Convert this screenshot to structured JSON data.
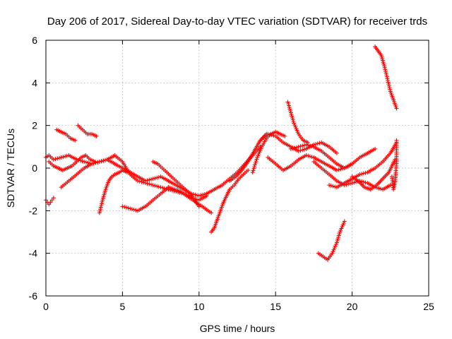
{
  "chart_data": {
    "type": "scatter",
    "title": "Day 206 of 2017, Sidereal Day-to-day VTEC variation (SDTVAR) for receiver trds",
    "xlabel": "GPS time / hours",
    "ylabel": "SDTVAR / TECUs",
    "xlim": [
      0,
      25
    ],
    "ylim": [
      -6,
      6
    ],
    "xticks": [
      0,
      5,
      10,
      15,
      20,
      25
    ],
    "yticks": [
      -6,
      -4,
      -2,
      0,
      2,
      4,
      6
    ],
    "xtick_labels": [
      "0",
      "5",
      "10",
      "15",
      "20",
      "25"
    ],
    "ytick_labels": [
      "-6",
      "-4",
      "-2",
      "0",
      "2",
      "4",
      "6"
    ],
    "grid": true,
    "marker": "+",
    "color": "#ff0000",
    "series": [
      {
        "name": "s1",
        "x": [
          0.0,
          0.2,
          0.5,
          1.0,
          1.5,
          2.0,
          2.5,
          3.0,
          3.5,
          4.0,
          4.5,
          5.0,
          5.5,
          6.0,
          6.5,
          7.0,
          7.5,
          8.0,
          8.5,
          9.0,
          9.5,
          10.0,
          10.5
        ],
        "y": [
          0.5,
          0.6,
          0.4,
          0.5,
          0.6,
          0.4,
          0.3,
          0.2,
          0.3,
          0.4,
          0.6,
          0.3,
          -0.3,
          -0.6,
          -0.7,
          -0.8,
          -0.9,
          -1.0,
          -1.1,
          -1.2,
          -1.4,
          -1.5,
          -1.3
        ]
      },
      {
        "name": "s2",
        "x": [
          0.0,
          0.1,
          0.2,
          0.3,
          0.4,
          0.5
        ],
        "y": [
          -1.5,
          -1.6,
          -1.7,
          -1.6,
          -1.5,
          -1.4
        ]
      },
      {
        "name": "s3",
        "x": [
          0.7,
          1.0,
          1.3,
          1.6,
          1.9
        ],
        "y": [
          1.8,
          1.7,
          1.6,
          1.4,
          1.3
        ]
      },
      {
        "name": "s4",
        "x": [
          2.1,
          2.4,
          2.7,
          3.0,
          3.3
        ],
        "y": [
          2.0,
          1.8,
          1.6,
          1.6,
          1.5
        ]
      },
      {
        "name": "s5",
        "x": [
          0.2,
          0.5,
          0.8,
          1.1,
          1.4,
          1.7,
          2.0,
          2.3,
          2.6,
          2.9,
          3.2
        ],
        "y": [
          0.3,
          0.1,
          0.0,
          -0.1,
          0.0,
          0.1,
          0.3,
          0.5,
          0.6,
          0.4,
          0.3
        ]
      },
      {
        "name": "s6",
        "x": [
          1.0,
          1.5,
          2.0,
          2.5,
          3.0,
          3.5,
          4.0,
          4.5,
          5.0,
          5.5,
          6.0,
          6.5,
          7.0,
          7.5,
          8.0,
          8.5,
          9.0,
          9.5,
          10.0,
          10.5
        ],
        "y": [
          -0.9,
          -0.6,
          -0.3,
          0.0,
          0.2,
          0.3,
          0.4,
          0.2,
          0.0,
          -0.2,
          -0.4,
          -0.6,
          -0.5,
          -0.4,
          -0.6,
          -0.8,
          -1.0,
          -1.2,
          -1.3,
          -1.2
        ]
      },
      {
        "name": "s7",
        "x": [
          3.5,
          3.7,
          3.9,
          4.1,
          4.3,
          4.5,
          4.8,
          5.0,
          5.3
        ],
        "y": [
          -2.1,
          -1.5,
          -1.0,
          -0.6,
          -0.4,
          -0.3,
          -0.2,
          -0.1,
          -0.2
        ]
      },
      {
        "name": "s8",
        "x": [
          5.0,
          5.5,
          6.0,
          6.5,
          7.0,
          7.5,
          8.0
        ],
        "y": [
          -1.8,
          -1.9,
          -2.0,
          -1.8,
          -1.5,
          -1.2,
          -0.9
        ]
      },
      {
        "name": "s9",
        "x": [
          7.0,
          7.3,
          7.6,
          7.9,
          8.2,
          8.5,
          8.8,
          9.1,
          9.4,
          9.7,
          10.0
        ],
        "y": [
          0.3,
          0.2,
          0.0,
          -0.2,
          -0.4,
          -0.6,
          -0.8,
          -1.0,
          -1.2,
          -1.5,
          -1.8
        ]
      },
      {
        "name": "s10",
        "x": [
          8.0,
          8.4,
          8.8,
          9.2,
          9.6,
          10.0,
          10.4,
          10.8
        ],
        "y": [
          -0.9,
          -1.0,
          -1.1,
          -1.3,
          -1.5,
          -1.7,
          -1.9,
          -2.1
        ]
      },
      {
        "name": "s11",
        "x": [
          10.8,
          11.0,
          11.2,
          11.4,
          11.6,
          11.8,
          12.0,
          12.3,
          12.6,
          12.9,
          13.2
        ],
        "y": [
          -3.0,
          -2.8,
          -2.4,
          -2.0,
          -1.6,
          -1.3,
          -1.0,
          -0.8,
          -0.5,
          -0.3,
          -0.1
        ]
      },
      {
        "name": "s12",
        "x": [
          10.5,
          11.0,
          11.5,
          12.0,
          12.5,
          13.0,
          13.5,
          14.0
        ],
        "y": [
          -1.2,
          -1.0,
          -0.8,
          -0.5,
          -0.2,
          0.2,
          0.6,
          1.0
        ]
      },
      {
        "name": "s13",
        "x": [
          12.0,
          12.4,
          12.8,
          13.2,
          13.6,
          14.0,
          14.4
        ],
        "y": [
          -0.6,
          -0.4,
          -0.1,
          0.3,
          0.8,
          1.3,
          1.6
        ]
      },
      {
        "name": "s14",
        "x": [
          13.5,
          13.8,
          14.1,
          14.4,
          14.7,
          15.0,
          15.3,
          15.6
        ],
        "y": [
          -0.2,
          0.5,
          1.0,
          1.4,
          1.6,
          1.7,
          1.6,
          1.5
        ]
      },
      {
        "name": "s15",
        "x": [
          14.0,
          14.5,
          15.0,
          15.5,
          16.0,
          16.5,
          17.0,
          17.5,
          18.0,
          18.5,
          19.0
        ],
        "y": [
          1.3,
          1.6,
          1.5,
          1.2,
          1.0,
          0.8,
          0.9,
          1.1,
          1.2,
          1.0,
          0.7
        ]
      },
      {
        "name": "s16",
        "x": [
          15.8,
          16.0,
          16.2,
          16.5,
          16.8,
          17.1
        ],
        "y": [
          3.1,
          2.6,
          2.1,
          1.6,
          1.3,
          1.2
        ]
      },
      {
        "name": "s17",
        "x": [
          14.5,
          15.0,
          15.5,
          16.0,
          16.5,
          17.0,
          17.5,
          18.0,
          18.5,
          19.0,
          19.5,
          20.0
        ],
        "y": [
          0.5,
          0.2,
          -0.1,
          0.1,
          0.4,
          0.6,
          0.5,
          0.3,
          0.1,
          -0.1,
          0.0,
          0.2
        ]
      },
      {
        "name": "s18",
        "x": [
          16.0,
          16.5,
          17.0,
          17.5,
          18.0,
          18.5,
          19.0,
          19.5,
          20.0,
          20.5,
          21.0,
          21.5
        ],
        "y": [
          0.9,
          1.0,
          1.1,
          1.0,
          0.8,
          0.5,
          0.2,
          0.0,
          0.2,
          0.5,
          0.7,
          0.9
        ]
      },
      {
        "name": "s19",
        "x": [
          17.5,
          18.0,
          18.5,
          19.0,
          19.5,
          20.0,
          20.5,
          21.0,
          21.5,
          22.0,
          22.5
        ],
        "y": [
          0.3,
          0.0,
          -0.3,
          -0.6,
          -0.8,
          -0.7,
          -0.6,
          -0.7,
          -0.9,
          -1.0,
          -0.8
        ]
      },
      {
        "name": "s20",
        "x": [
          18.5,
          19.0,
          19.5,
          20.0,
          20.5,
          21.0,
          21.5,
          22.0,
          22.5,
          22.9
        ],
        "y": [
          -0.8,
          -0.9,
          -0.7,
          -0.5,
          -0.3,
          -0.2,
          0.0,
          0.3,
          0.7,
          1.2
        ]
      },
      {
        "name": "s21",
        "x": [
          20.0,
          20.4,
          20.8,
          21.2,
          21.6,
          22.0,
          22.4,
          22.8
        ],
        "y": [
          -0.4,
          -0.6,
          -0.9,
          -1.0,
          -0.8,
          -0.5,
          -0.2,
          0.4
        ]
      },
      {
        "name": "s22",
        "x": [
          17.8,
          18.0,
          18.2,
          18.4,
          18.7,
          19.0,
          19.2,
          19.5
        ],
        "y": [
          -4.0,
          -4.1,
          -4.2,
          -4.3,
          -4.0,
          -3.5,
          -3.0,
          -2.5
        ]
      },
      {
        "name": "s23",
        "x": [
          21.5,
          21.7,
          21.9,
          22.1,
          22.3,
          22.5,
          22.7,
          22.9
        ],
        "y": [
          5.7,
          5.5,
          5.3,
          4.8,
          4.2,
          3.6,
          3.2,
          2.8
        ]
      },
      {
        "name": "s24",
        "x": [
          22.6,
          22.7,
          22.8,
          22.9,
          22.9
        ],
        "y": [
          -0.4,
          -1.0,
          -0.7,
          0.3,
          1.3
        ]
      }
    ]
  }
}
